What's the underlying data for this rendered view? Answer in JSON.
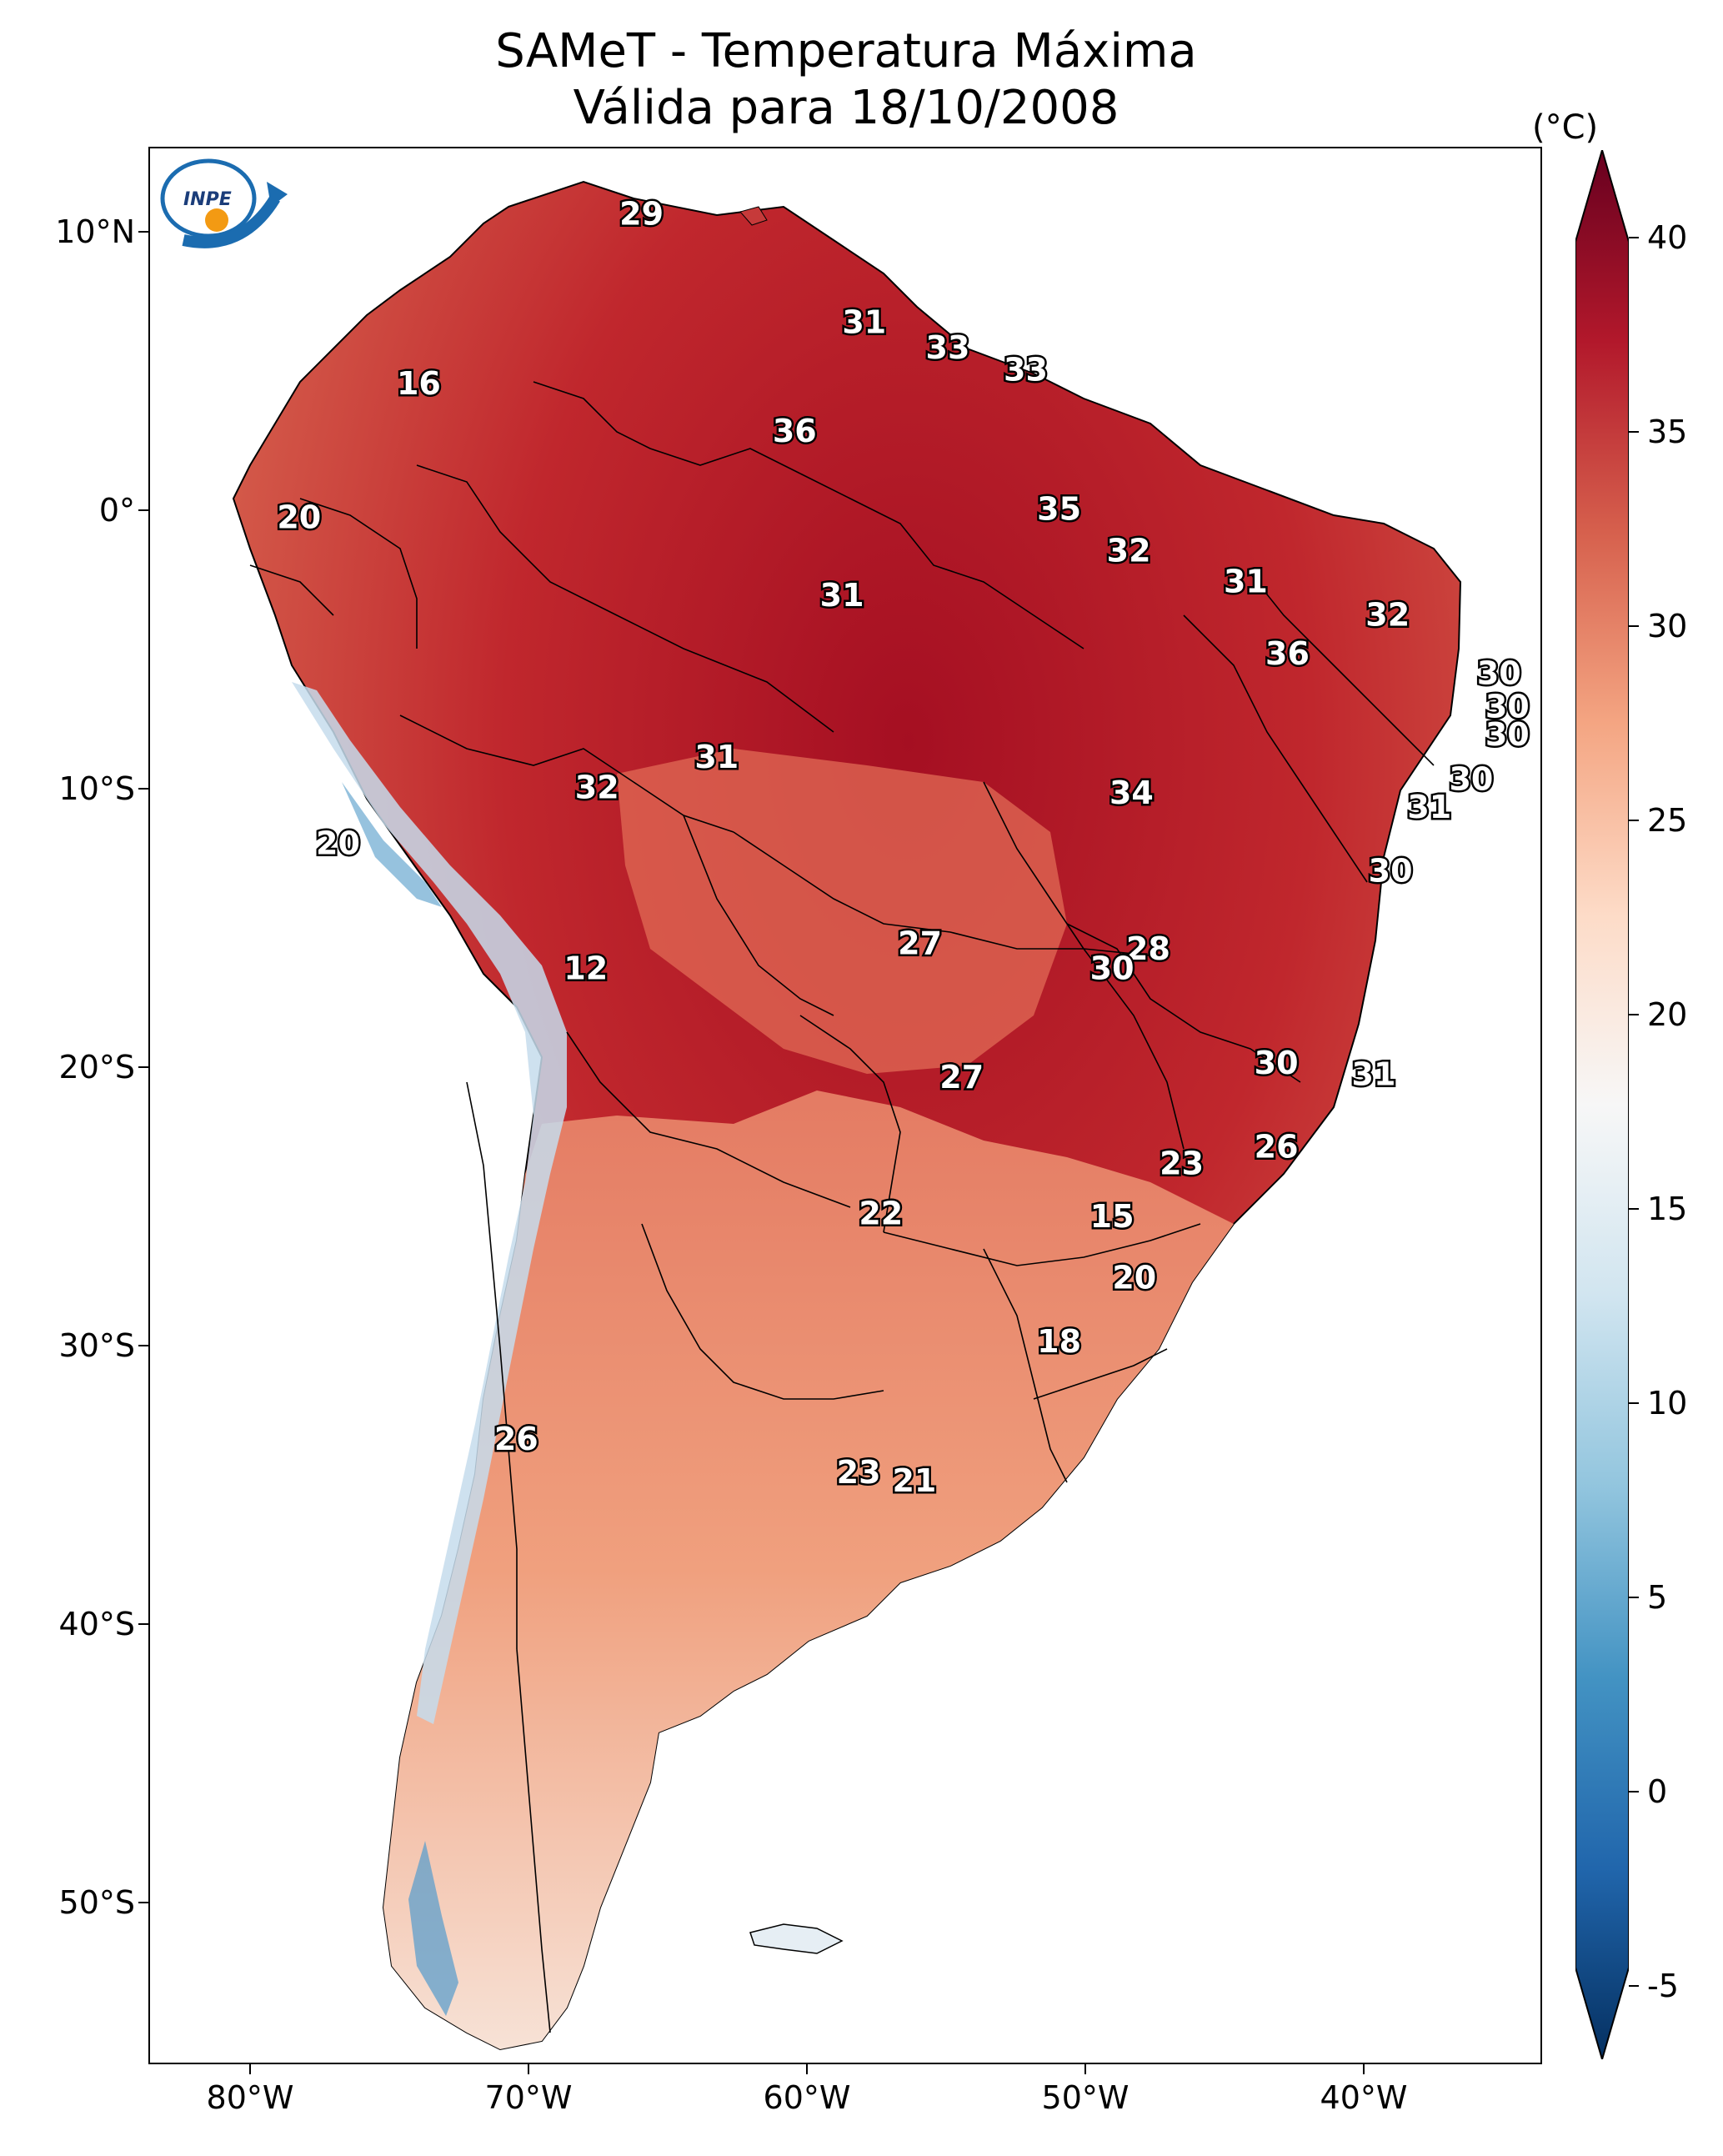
{
  "title": {
    "line1": "SAMeT - Temperatura Máxima",
    "line2": "Válida para 18/10/2008"
  },
  "map": {
    "lat_ticks": [
      "10°N",
      "0°",
      "10°S",
      "20°S",
      "30°S",
      "40°S",
      "50°S"
    ],
    "lon_ticks": [
      "80°W",
      "70°W",
      "60°W",
      "50°W",
      "40°W"
    ],
    "station_labels": [
      {
        "text": "29",
        "lon": -66.0,
        "lat": 10.6
      },
      {
        "text": "16",
        "lon": -74.0,
        "lat": 4.5
      },
      {
        "text": "31",
        "lon": -58.0,
        "lat": 6.7
      },
      {
        "text": "33",
        "lon": -55.0,
        "lat": 5.8
      },
      {
        "text": "33",
        "lon": -52.2,
        "lat": 5.0
      },
      {
        "text": "36",
        "lon": -60.5,
        "lat": 2.8
      },
      {
        "text": "20",
        "lon": -78.3,
        "lat": -0.3
      },
      {
        "text": "35",
        "lon": -51.0,
        "lat": 0.0
      },
      {
        "text": "32",
        "lon": -48.5,
        "lat": -1.5
      },
      {
        "text": "31",
        "lon": -58.8,
        "lat": -3.1
      },
      {
        "text": "31",
        "lon": -44.3,
        "lat": -2.6
      },
      {
        "text": "32",
        "lon": -39.2,
        "lat": -3.8
      },
      {
        "text": "36",
        "lon": -42.8,
        "lat": -5.2
      },
      {
        "text": "30",
        "lon": -35.2,
        "lat": -5.9
      },
      {
        "text": "30",
        "lon": -34.9,
        "lat": -7.1
      },
      {
        "text": "30",
        "lon": -34.9,
        "lat": -8.1
      },
      {
        "text": "31",
        "lon": -63.3,
        "lat": -8.9
      },
      {
        "text": "32",
        "lon": -67.6,
        "lat": -10.0
      },
      {
        "text": "34",
        "lon": -48.4,
        "lat": -10.2
      },
      {
        "text": "30",
        "lon": -36.2,
        "lat": -9.7
      },
      {
        "text": "31",
        "lon": -37.7,
        "lat": -10.7
      },
      {
        "text": "20",
        "lon": -76.9,
        "lat": -12.0
      },
      {
        "text": "30",
        "lon": -39.1,
        "lat": -13.0
      },
      {
        "text": "12",
        "lon": -68.0,
        "lat": -16.5
      },
      {
        "text": "27",
        "lon": -56.0,
        "lat": -15.6
      },
      {
        "text": "28",
        "lon": -47.8,
        "lat": -15.8
      },
      {
        "text": "30",
        "lon": -49.1,
        "lat": -16.5
      },
      {
        "text": "27",
        "lon": -54.5,
        "lat": -20.4
      },
      {
        "text": "30",
        "lon": -43.2,
        "lat": -19.9
      },
      {
        "text": "31",
        "lon": -39.7,
        "lat": -20.3
      },
      {
        "text": "26",
        "lon": -43.2,
        "lat": -22.9
      },
      {
        "text": "23",
        "lon": -46.6,
        "lat": -23.5
      },
      {
        "text": "22",
        "lon": -57.4,
        "lat": -25.3
      },
      {
        "text": "15",
        "lon": -49.1,
        "lat": -25.4
      },
      {
        "text": "20",
        "lon": -48.3,
        "lat": -27.6
      },
      {
        "text": "18",
        "lon": -51.0,
        "lat": -29.9
      },
      {
        "text": "26",
        "lon": -70.5,
        "lat": -33.4
      },
      {
        "text": "23",
        "lon": -58.2,
        "lat": -34.6
      },
      {
        "text": "21",
        "lon": -56.2,
        "lat": -34.9
      }
    ]
  },
  "colorbar": {
    "unit": "(°C)",
    "ticks": [
      "40",
      "35",
      "30",
      "25",
      "20",
      "15",
      "10",
      "5",
      "0",
      "-5"
    ],
    "colors": [
      "#67001f",
      "#b2182b",
      "#d6604d",
      "#f4a582",
      "#fddbc7",
      "#f7f7f7",
      "#d1e5f0",
      "#92c5de",
      "#4393c3",
      "#2166ac",
      "#053061"
    ]
  },
  "logo": {
    "text": "INPE"
  }
}
